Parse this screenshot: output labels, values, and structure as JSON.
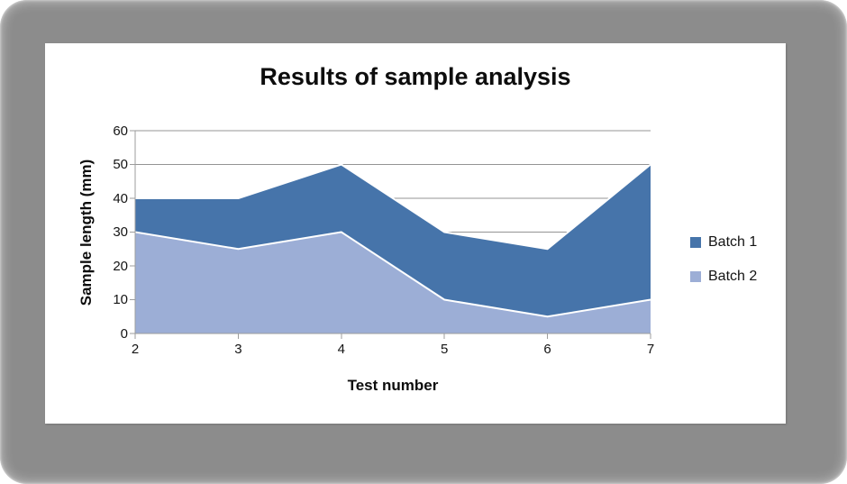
{
  "window": {
    "background_color": "#8c8c8c",
    "panel_color": "#ffffff"
  },
  "chart_data": {
    "type": "area",
    "title": "Results of sample analysis",
    "xlabel": "Test number",
    "ylabel": "Sample length (mm)",
    "categories": [
      2,
      3,
      4,
      5,
      6,
      7
    ],
    "series": [
      {
        "name": "Batch 1",
        "color": "#4674aa",
        "values": [
          40,
          40,
          50,
          30,
          25,
          50
        ]
      },
      {
        "name": "Batch 2",
        "color": "#9caed6",
        "values": [
          30,
          25,
          30,
          10,
          5,
          10
        ]
      }
    ],
    "ylim": [
      0,
      60
    ],
    "y_ticks": [
      0,
      10,
      20,
      30,
      40,
      50,
      60
    ],
    "grid": "horizontal",
    "gridline_color": "#949494",
    "axis_color": "#9d9d9d",
    "series_outline_color": "#ffffff",
    "legend_position": "right",
    "overlap": true
  }
}
